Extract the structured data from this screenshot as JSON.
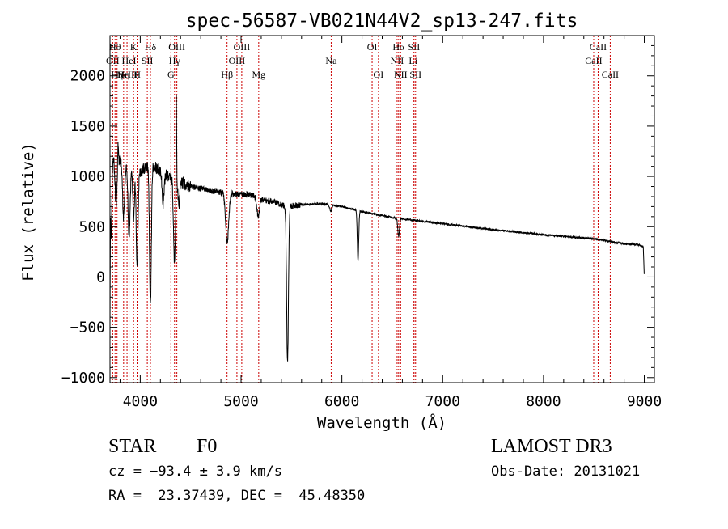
{
  "chart_data": {
    "type": "line",
    "title": "spec-56587-VB021N44V2_sp13-247.fits",
    "xlabel": "Wavelength (Å)",
    "ylabel": "Flux (relative)",
    "xlim": [
      3700,
      9100
    ],
    "ylim": [
      -1050,
      2400
    ],
    "x_ticks": [
      4000,
      5000,
      6000,
      7000,
      8000,
      9000
    ],
    "y_ticks": [
      -1000,
      -500,
      0,
      500,
      1000,
      1500,
      2000
    ],
    "grid": false,
    "line_color": "#000000",
    "marker_color": "#cc0000",
    "continuum": [
      [
        3700,
        0
      ],
      [
        3705,
        1300
      ],
      [
        3740,
        1200
      ],
      [
        3800,
        1150
      ],
      [
        3900,
        1100
      ],
      [
        4000,
        1050
      ],
      [
        4100,
        1120
      ],
      [
        4200,
        1060
      ],
      [
        4300,
        980
      ],
      [
        4400,
        940
      ],
      [
        4500,
        900
      ],
      [
        4600,
        880
      ],
      [
        4700,
        860
      ],
      [
        4800,
        840
      ],
      [
        4870,
        830
      ],
      [
        4950,
        830
      ],
      [
        5100,
        815
      ],
      [
        5200,
        770
      ],
      [
        5350,
        740
      ],
      [
        5450,
        700
      ],
      [
        5600,
        720
      ],
      [
        5800,
        730
      ],
      [
        6000,
        700
      ],
      [
        6200,
        650
      ],
      [
        6500,
        590
      ],
      [
        7000,
        530
      ],
      [
        7500,
        470
      ],
      [
        8000,
        420
      ],
      [
        8500,
        380
      ],
      [
        8800,
        330
      ],
      [
        8950,
        320
      ],
      [
        8990,
        300
      ],
      [
        9000,
        0
      ]
    ],
    "absorption_lines": [
      {
        "center": 3710,
        "depth": 900,
        "width": 8
      },
      {
        "center": 3760,
        "depth": 450,
        "width": 10
      },
      {
        "center": 3835,
        "depth": 550,
        "width": 10
      },
      {
        "center": 3889,
        "depth": 700,
        "width": 10
      },
      {
        "center": 3934,
        "depth": 500,
        "width": 8
      },
      {
        "center": 3969,
        "depth": 950,
        "width": 9
      },
      {
        "center": 4101,
        "depth": 1400,
        "width": 9
      },
      {
        "center": 4227,
        "depth": 300,
        "width": 10
      },
      {
        "center": 4340,
        "depth": 800,
        "width": 10
      },
      {
        "center": 4383,
        "depth": 250,
        "width": 8
      },
      {
        "center": 4862,
        "depth": 500,
        "width": 15
      },
      {
        "center": 5170,
        "depth": 180,
        "width": 12
      },
      {
        "center": 5461,
        "depth": 1550,
        "width": 9
      },
      {
        "center": 5890,
        "depth": 60,
        "width": 10
      },
      {
        "center": 6160,
        "depth": 500,
        "width": 7
      },
      {
        "center": 6563,
        "depth": 180,
        "width": 8
      }
    ],
    "emission_spikes": [
      {
        "center": 4358,
        "height": 1030,
        "width": 3
      },
      {
        "center": 3780,
        "height": 200,
        "width": 4
      }
    ],
    "series": [
      {
        "name": "spectrum",
        "noise_sigma_blue": 60,
        "noise_sigma_red": 10
      }
    ],
    "line_markers": [
      {
        "wavelength": 3727,
        "label": "OII",
        "row": 2
      },
      {
        "wavelength": 3750,
        "label": "Hθ",
        "row": 1
      },
      {
        "wavelength": 3770,
        "label": "Hη",
        "row": 3
      },
      {
        "wavelength": 3835,
        "label": "Hη",
        "row": 3
      },
      {
        "wavelength": 3869,
        "label": "NeIII",
        "row": 3
      },
      {
        "wavelength": 3889,
        "label": "HeI",
        "row": 2
      },
      {
        "wavelength": 3934,
        "label": "K",
        "row": 1
      },
      {
        "wavelength": 3969,
        "label": "H",
        "row": 3
      },
      {
        "wavelength": 4070,
        "label": "SII",
        "row": 2
      },
      {
        "wavelength": 4101,
        "label": "Hδ",
        "row": 1
      },
      {
        "wavelength": 4304,
        "label": "G",
        "row": 3
      },
      {
        "wavelength": 4340,
        "label": "Hγ",
        "row": 2
      },
      {
        "wavelength": 4363,
        "label": "OIII",
        "row": 1
      },
      {
        "wavelength": 4861,
        "label": "Hβ",
        "row": 3
      },
      {
        "wavelength": 4959,
        "label": "OIII",
        "row": 2
      },
      {
        "wavelength": 5007,
        "label": "OIII",
        "row": 1
      },
      {
        "wavelength": 5175,
        "label": "Mg",
        "row": 3
      },
      {
        "wavelength": 5894,
        "label": "Na",
        "row": 2
      },
      {
        "wavelength": 6300,
        "label": "OI",
        "row": 1
      },
      {
        "wavelength": 6363,
        "label": "OI",
        "row": 3
      },
      {
        "wavelength": 6548,
        "label": "NII",
        "row": 2
      },
      {
        "wavelength": 6563,
        "label": "Hα",
        "row": 1
      },
      {
        "wavelength": 6583,
        "label": "NII",
        "row": 3
      },
      {
        "wavelength": 6707,
        "label": "Li",
        "row": 2
      },
      {
        "wavelength": 6716,
        "label": "SII",
        "row": 1
      },
      {
        "wavelength": 6731,
        "label": "SII",
        "row": 3
      },
      {
        "wavelength": 8498,
        "label": "CaII",
        "row": 2
      },
      {
        "wavelength": 8542,
        "label": "CaII",
        "row": 1
      },
      {
        "wavelength": 8662,
        "label": "CaII",
        "row": 3
      }
    ]
  },
  "footer": {
    "object_class": "STAR",
    "subclass": "F0",
    "survey": "LAMOST DR3",
    "redshift": "cz = −93.4 ± 3.9 km/s",
    "obs_date": "Obs-Date: 20131021",
    "coords": "RA =  23.37439, DEC =  45.48350"
  }
}
